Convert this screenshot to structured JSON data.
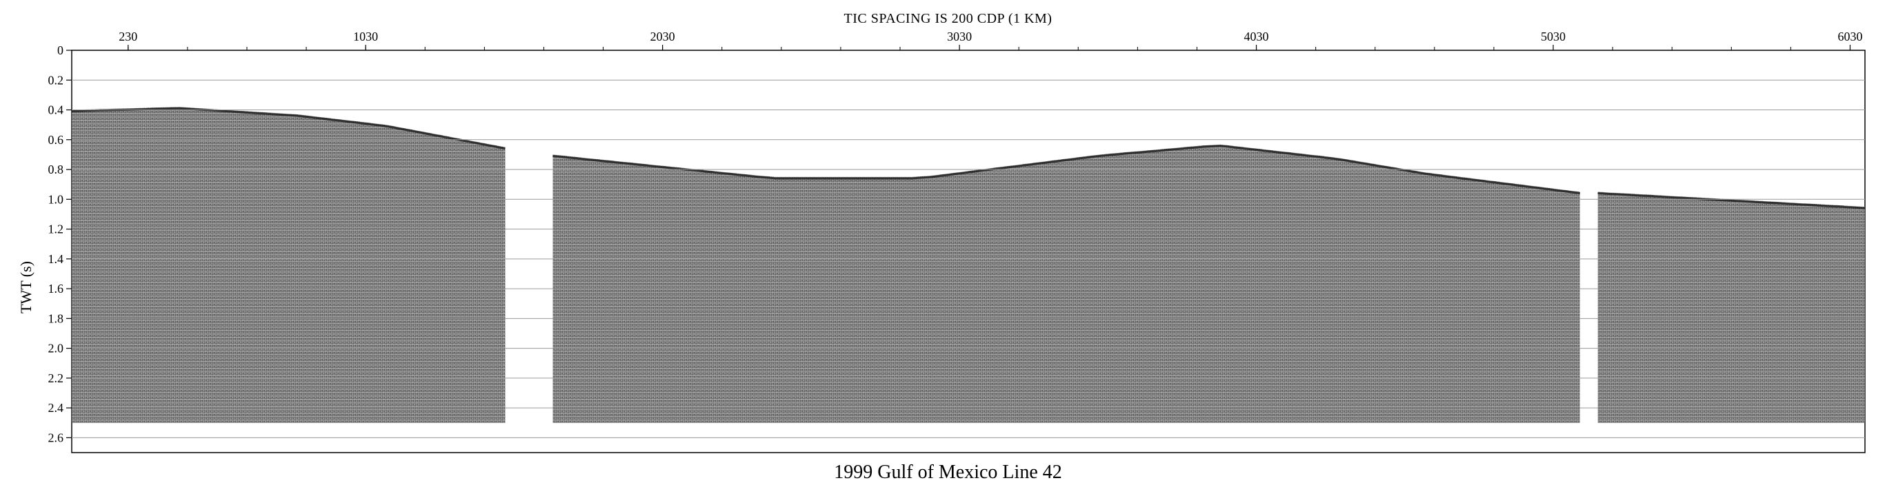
{
  "title_top": "TIC SPACING IS 200 CDP (1 KM)",
  "title_bottom": "1999 Gulf of Mexico Line 42",
  "y_axis_label": "TWT (s)",
  "chart_data": {
    "type": "seismic-section",
    "title": "1999 Gulf of Mexico Line 42",
    "subtitle": "TIC SPACING IS 200 CDP (1 KM)",
    "ylabel": "TWT (s)",
    "xlabel": "",
    "x_ticks": [
      "230",
      "1030",
      "2030",
      "3030",
      "4030",
      "5030",
      "6030"
    ],
    "x_tick_values": [
      230,
      1030,
      2030,
      3030,
      4030,
      5030,
      6030
    ],
    "y_ticks": [
      "0",
      "0.2",
      "0.4",
      "0.6",
      "0.8",
      "1.0",
      "1.2",
      "1.4",
      "1.6",
      "1.8",
      "2.0",
      "2.2",
      "2.4",
      "2.6"
    ],
    "ylim": [
      2.7,
      0
    ],
    "xlim": [
      40,
      6080
    ],
    "gridlines_horizontal": true,
    "data_gaps_cdp": [
      [
        1500,
        1660
      ],
      [
        5120,
        5180
      ]
    ],
    "seafloor_twt": [
      {
        "cdp": 40,
        "twt": 0.4
      },
      {
        "cdp": 400,
        "twt": 0.38
      },
      {
        "cdp": 800,
        "twt": 0.43
      },
      {
        "cdp": 1100,
        "twt": 0.5
      },
      {
        "cdp": 1500,
        "twt": 0.65
      },
      {
        "cdp": 1660,
        "twt": 0.7
      },
      {
        "cdp": 2400,
        "twt": 0.85
      },
      {
        "cdp": 2900,
        "twt": 0.85
      },
      {
        "cdp": 3500,
        "twt": 0.7
      },
      {
        "cdp": 3900,
        "twt": 0.63
      },
      {
        "cdp": 4300,
        "twt": 0.72
      },
      {
        "cdp": 4600,
        "twt": 0.82
      },
      {
        "cdp": 5120,
        "twt": 0.95
      },
      {
        "cdp": 5180,
        "twt": 0.95
      },
      {
        "cdp": 6080,
        "twt": 1.05
      }
    ],
    "data_bottom_twt": 2.5,
    "colors": {
      "traces": "#222222",
      "background": "#ffffff",
      "grid": "#9a9a9a"
    }
  }
}
